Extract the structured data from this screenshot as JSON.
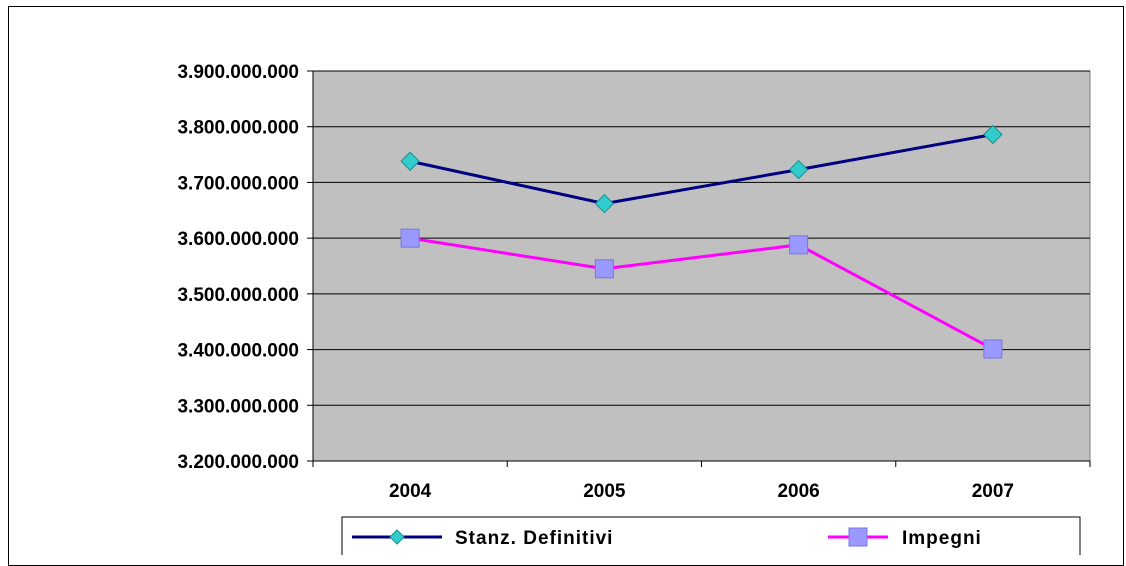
{
  "chart_data": {
    "type": "line",
    "categories": [
      "2004",
      "2005",
      "2006",
      "2007"
    ],
    "series": [
      {
        "name": "Stanz. Definitivi",
        "values": [
          3738000000,
          3662000000,
          3723000000,
          3786000000
        ],
        "color": "#000080",
        "marker": "diamond",
        "marker_color": "#33CCCC"
      },
      {
        "name": "Impegni",
        "values": [
          3600000000,
          3545000000,
          3588000000,
          3401000000
        ],
        "color": "#FF00FF",
        "marker": "square",
        "marker_color": "#9999FF"
      }
    ],
    "ylim": [
      3200000000,
      3900000000
    ],
    "yticks": [
      3200000000,
      3300000000,
      3400000000,
      3500000000,
      3600000000,
      3700000000,
      3800000000,
      3900000000
    ],
    "ytick_labels": [
      "3.200.000.000",
      "3.300.000.000",
      "3.400.000.000",
      "3.500.000.000",
      "3.600.000.000",
      "3.700.000.000",
      "3.800.000.000",
      "3.900.000.000"
    ],
    "grid": true,
    "plot_background": "#C0C0C0",
    "legend_position": "bottom",
    "title": "",
    "xlabel": "",
    "ylabel": ""
  }
}
